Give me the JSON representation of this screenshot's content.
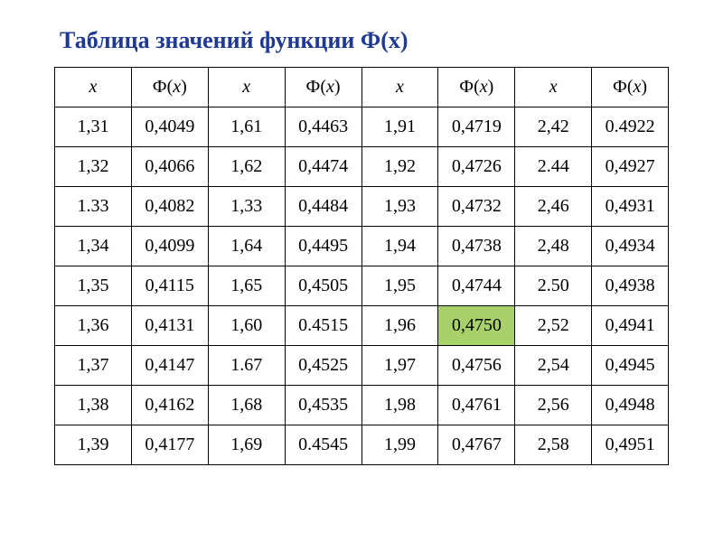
{
  "title": "Таблица значений функции Ф(x)",
  "table": {
    "headers": [
      "x",
      "Ф(x)",
      "x",
      "Ф(x)",
      "x",
      "Ф(x)",
      "x",
      "Ф(x)"
    ],
    "rows": [
      [
        "1,31",
        "0,4049",
        "1,61",
        "0,4463",
        "1,91",
        "0,4719",
        "2,42",
        "0.4922"
      ],
      [
        "1,32",
        "0,4066",
        "1,62",
        "0,4474",
        "1,92",
        "0,4726",
        "2.44",
        "0,4927"
      ],
      [
        "1.33",
        "0,4082",
        "1,33",
        "0,4484",
        "1,93",
        "0,4732",
        "2,46",
        "0,4931"
      ],
      [
        "1,34",
        "0,4099",
        "1,64",
        "0,4495",
        "1,94",
        "0,4738",
        "2,48",
        "0,4934"
      ],
      [
        "1,35",
        "0,4115",
        "1,65",
        "0,4505",
        "1,95",
        "0,4744",
        "2.50",
        "0,4938"
      ],
      [
        "1,36",
        "0,4131",
        "1,60",
        "0.4515",
        "1,96",
        "0,4750",
        "2,52",
        "0,4941"
      ],
      [
        "1,37",
        "0,4147",
        "1.67",
        "0,4525",
        "1,97",
        "0,4756",
        "2,54",
        "0,4945"
      ],
      [
        "1,38",
        "0,4162",
        "1,68",
        "0,4535",
        "1,98",
        "0,4761",
        "2,56",
        "0,4948"
      ],
      [
        "1,39",
        "0,4177",
        "1,69",
        "0.4545",
        "1,99",
        "0,4767",
        "2,58",
        "0,4951"
      ]
    ],
    "highlight": {
      "row": 5,
      "col": 5
    },
    "border_color": "#000000",
    "highlight_color": "#a8d16b",
    "background_color": "#ffffff",
    "title_color": "#1f3a93",
    "font_size_title": 26,
    "font_size_cell": 20,
    "num_columns": 8,
    "num_rows": 9
  }
}
